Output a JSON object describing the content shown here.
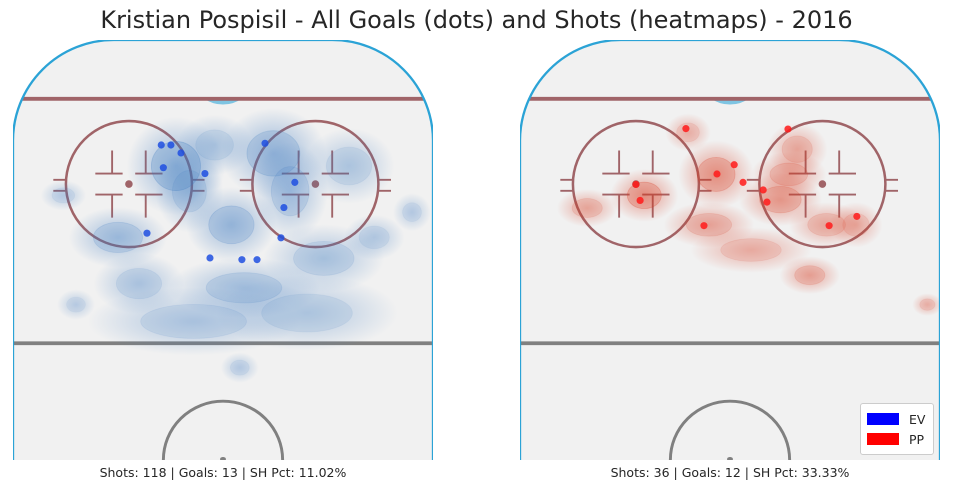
{
  "chart_data": {
    "type": "scatter",
    "title": "Kristian Pospisil - All Goals (dots) and Shots (heatmaps) - 2016",
    "xlim": [
      0,
      100
    ],
    "ylim": [
      0,
      100
    ],
    "grid": false,
    "legend_position": "bottom-right",
    "legend": [
      {
        "label": "EV",
        "color": "#0000ff"
      },
      {
        "label": "PP",
        "color": "#ff0000"
      }
    ],
    "panels": [
      {
        "name": "EV",
        "caption": "Shots: 118 | Goals: 13 | SH Pct: 11.02%",
        "dot_color": "#1f4fe0",
        "heat_color": "#3a78c0",
        "goals": [
          {
            "x": 35.3,
            "y": 25.0
          },
          {
            "x": 37.6,
            "y": 25.0
          },
          {
            "x": 40.0,
            "y": 26.9
          },
          {
            "x": 35.8,
            "y": 30.4
          },
          {
            "x": 45.7,
            "y": 31.8
          },
          {
            "x": 60.0,
            "y": 24.6
          },
          {
            "x": 67.1,
            "y": 33.9
          },
          {
            "x": 64.5,
            "y": 39.9
          },
          {
            "x": 31.9,
            "y": 46.0
          },
          {
            "x": 63.8,
            "y": 47.1
          },
          {
            "x": 46.9,
            "y": 51.9
          },
          {
            "x": 54.5,
            "y": 52.3
          },
          {
            "x": 58.1,
            "y": 52.3
          }
        ],
        "heat": [
          {
            "x": 38.8,
            "y": 30.0,
            "sx": 6.5,
            "sy": 6.5,
            "w": 1.0
          },
          {
            "x": 62.0,
            "y": 27.0,
            "sx": 7.0,
            "sy": 6.0,
            "w": 0.75
          },
          {
            "x": 52.0,
            "y": 44.0,
            "sx": 6.0,
            "sy": 5.0,
            "w": 0.7
          },
          {
            "x": 25.0,
            "y": 47.0,
            "sx": 6.5,
            "sy": 4.0,
            "w": 0.6
          },
          {
            "x": 66.0,
            "y": 36.0,
            "sx": 5.0,
            "sy": 6.5,
            "w": 0.55
          },
          {
            "x": 55.0,
            "y": 59.0,
            "sx": 10.0,
            "sy": 4.0,
            "w": 0.5
          },
          {
            "x": 42.0,
            "y": 36.0,
            "sx": 4.5,
            "sy": 5.5,
            "w": 0.45
          },
          {
            "x": 74.0,
            "y": 52.0,
            "sx": 8.0,
            "sy": 4.5,
            "w": 0.4
          },
          {
            "x": 30.0,
            "y": 58.0,
            "sx": 6.0,
            "sy": 4.0,
            "w": 0.35
          },
          {
            "x": 43.0,
            "y": 67.0,
            "sx": 14.0,
            "sy": 4.5,
            "w": 0.35
          },
          {
            "x": 70.0,
            "y": 65.0,
            "sx": 12.0,
            "sy": 5.0,
            "w": 0.3
          },
          {
            "x": 80.0,
            "y": 30.0,
            "sx": 6.0,
            "sy": 5.0,
            "w": 0.3
          },
          {
            "x": 48.0,
            "y": 25.0,
            "sx": 5.0,
            "sy": 4.0,
            "w": 0.3
          },
          {
            "x": 86.0,
            "y": 47.0,
            "sx": 4.0,
            "sy": 3.0,
            "w": 0.25
          },
          {
            "x": 95.0,
            "y": 41.0,
            "sx": 2.5,
            "sy": 2.5,
            "w": 0.2
          },
          {
            "x": 12.0,
            "y": 37.0,
            "sx": 3.0,
            "sy": 2.0,
            "w": 0.2
          },
          {
            "x": 54.0,
            "y": 78.0,
            "sx": 2.5,
            "sy": 2.0,
            "w": 0.2
          },
          {
            "x": 15.0,
            "y": 63.0,
            "sx": 2.5,
            "sy": 2.0,
            "w": 0.15
          }
        ]
      },
      {
        "name": "PP",
        "caption": "Shots: 36 | Goals: 12 | SH Pct: 33.33%",
        "dot_color": "#ff1a1a",
        "heat_color": "#d83c22",
        "goals": [
          {
            "x": 39.5,
            "y": 21.1
          },
          {
            "x": 63.8,
            "y": 21.2
          },
          {
            "x": 51.0,
            "y": 29.7
          },
          {
            "x": 46.9,
            "y": 31.9
          },
          {
            "x": 53.1,
            "y": 33.9
          },
          {
            "x": 27.6,
            "y": 34.4
          },
          {
            "x": 28.6,
            "y": 38.2
          },
          {
            "x": 57.9,
            "y": 35.7
          },
          {
            "x": 58.8,
            "y": 38.6
          },
          {
            "x": 80.2,
            "y": 42.0
          },
          {
            "x": 43.8,
            "y": 44.2
          },
          {
            "x": 73.6,
            "y": 44.2
          }
        ],
        "heat": [
          {
            "x": 29.6,
            "y": 37.0,
            "sx": 4.5,
            "sy": 3.5,
            "w": 1.0
          },
          {
            "x": 46.7,
            "y": 32.0,
            "sx": 5.0,
            "sy": 4.5,
            "w": 0.9
          },
          {
            "x": 62.0,
            "y": 38.0,
            "sx": 5.5,
            "sy": 3.5,
            "w": 0.7
          },
          {
            "x": 64.0,
            "y": 32.0,
            "sx": 5.0,
            "sy": 3.0,
            "w": 0.55
          },
          {
            "x": 66.0,
            "y": 26.0,
            "sx": 4.0,
            "sy": 3.5,
            "w": 0.45
          },
          {
            "x": 69.0,
            "y": 56.0,
            "sx": 4.0,
            "sy": 2.5,
            "w": 0.55
          },
          {
            "x": 45.0,
            "y": 44.0,
            "sx": 6.0,
            "sy": 3.0,
            "w": 0.5
          },
          {
            "x": 73.0,
            "y": 44.0,
            "sx": 5.0,
            "sy": 3.0,
            "w": 0.45
          },
          {
            "x": 16.0,
            "y": 40.0,
            "sx": 4.0,
            "sy": 2.5,
            "w": 0.45
          },
          {
            "x": 55.0,
            "y": 50.0,
            "sx": 8.0,
            "sy": 3.0,
            "w": 0.35
          },
          {
            "x": 80.0,
            "y": 44.0,
            "sx": 3.5,
            "sy": 3.0,
            "w": 0.35
          },
          {
            "x": 40.0,
            "y": 22.0,
            "sx": 3.0,
            "sy": 2.5,
            "w": 0.3
          },
          {
            "x": 97.0,
            "y": 63.0,
            "sx": 2.0,
            "sy": 1.5,
            "w": 0.3
          }
        ]
      }
    ]
  }
}
